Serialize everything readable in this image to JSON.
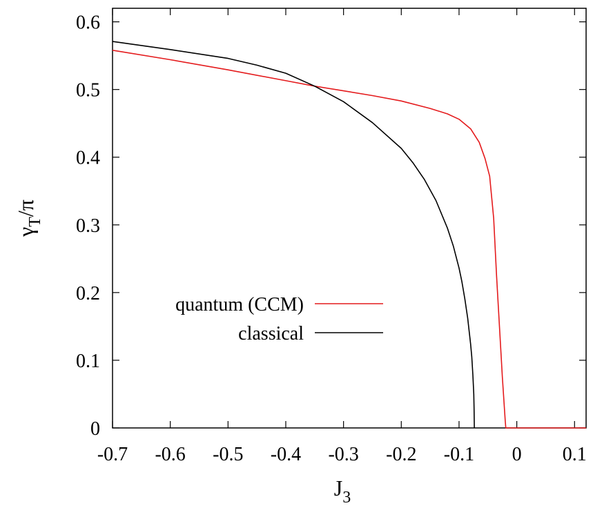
{
  "chart_data": {
    "type": "line",
    "title": "",
    "xlabel": "J3",
    "ylabel": "γT/π",
    "xlabel_parts": {
      "base": "J",
      "sub": "3"
    },
    "ylabel_parts": {
      "base": "γ",
      "sub": "T",
      "rest": "/π"
    },
    "xlim": [
      -0.7,
      0.12
    ],
    "ylim": [
      0,
      0.62
    ],
    "xticks": [
      -0.7,
      -0.6,
      -0.5,
      -0.4,
      -0.3,
      -0.2,
      -0.1,
      0,
      0.1
    ],
    "xtick_labels": [
      "-0.7",
      "-0.6",
      "-0.5",
      "-0.4",
      "-0.3",
      "-0.2",
      "-0.1",
      "0",
      "0.1"
    ],
    "yticks": [
      0,
      0.1,
      0.2,
      0.3,
      0.4,
      0.5,
      0.6
    ],
    "ytick_labels": [
      "0",
      "0.1",
      "0.2",
      "0.3",
      "0.4",
      "0.5",
      "0.6"
    ],
    "grid": false,
    "legend_position": "center-left",
    "series": [
      {
        "name": "quantum (CCM)",
        "color": "#e41a1c",
        "x": [
          -0.7,
          -0.6,
          -0.5,
          -0.4,
          -0.35,
          -0.3,
          -0.25,
          -0.2,
          -0.15,
          -0.12,
          -0.1,
          -0.08,
          -0.065,
          -0.055,
          -0.047,
          -0.04,
          -0.035,
          -0.03,
          -0.025,
          -0.02,
          -0.019,
          0.12
        ],
        "y": [
          0.558,
          0.544,
          0.529,
          0.513,
          0.505,
          0.498,
          0.491,
          0.483,
          0.472,
          0.464,
          0.456,
          0.442,
          0.422,
          0.398,
          0.372,
          0.31,
          0.225,
          0.15,
          0.075,
          0.01,
          0.0,
          0.0
        ]
      },
      {
        "name": "classical",
        "color": "#000000",
        "x": [
          -0.7,
          -0.6,
          -0.5,
          -0.45,
          -0.4,
          -0.35,
          -0.3,
          -0.25,
          -0.2,
          -0.18,
          -0.16,
          -0.14,
          -0.12,
          -0.11,
          -0.1,
          -0.095,
          -0.09,
          -0.085,
          -0.08,
          -0.078,
          -0.076,
          -0.0745,
          -0.074,
          -0.0735,
          0.12
        ],
        "y": [
          0.571,
          0.559,
          0.546,
          0.536,
          0.524,
          0.505,
          0.482,
          0.451,
          0.413,
          0.392,
          0.367,
          0.336,
          0.295,
          0.269,
          0.236,
          0.216,
          0.191,
          0.162,
          0.124,
          0.105,
          0.078,
          0.05,
          0.03,
          0.0,
          null
        ]
      }
    ]
  }
}
